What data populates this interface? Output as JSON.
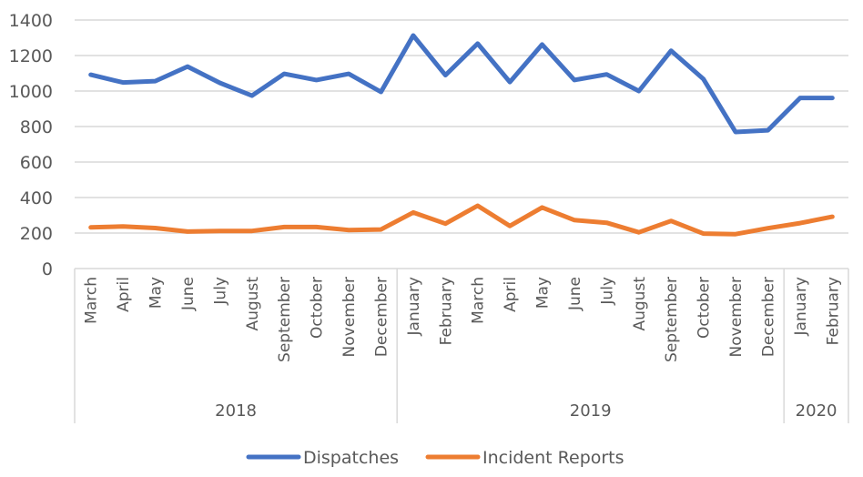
{
  "chart_data": {
    "type": "line",
    "title": "",
    "xlabel": "",
    "ylabel": "",
    "ylim": [
      0,
      1400
    ],
    "yticks": [
      0,
      200,
      400,
      600,
      800,
      1000,
      1200,
      1400
    ],
    "grid": true,
    "legend_position": "bottom",
    "categories": [
      "March",
      "April",
      "May",
      "June",
      "July",
      "August",
      "September",
      "October",
      "November",
      "December",
      "January",
      "February",
      "March",
      "April",
      "May",
      "June",
      "July",
      "August",
      "September",
      "October",
      "November",
      "December",
      "January",
      "February"
    ],
    "groups": [
      {
        "label": "2018",
        "count": 10
      },
      {
        "label": "2019",
        "count": 12
      },
      {
        "label": "2020",
        "count": 2
      }
    ],
    "series": [
      {
        "name": "Dispatches",
        "color": "#4472c4",
        "values": [
          1092,
          1048,
          1056,
          1138,
          1046,
          974,
          1097,
          1062,
          1097,
          995,
          1313,
          1089,
          1267,
          1051,
          1262,
          1062,
          1094,
          1000,
          1227,
          1068,
          769,
          779,
          961,
          961
        ]
      },
      {
        "name": "Incident Reports",
        "color": "#ed7d31",
        "values": [
          232,
          237,
          228,
          208,
          212,
          212,
          234,
          234,
          217,
          220,
          316,
          253,
          354,
          240,
          344,
          273,
          258,
          204,
          268,
          197,
          194,
          227,
          256,
          292
        ]
      }
    ]
  }
}
